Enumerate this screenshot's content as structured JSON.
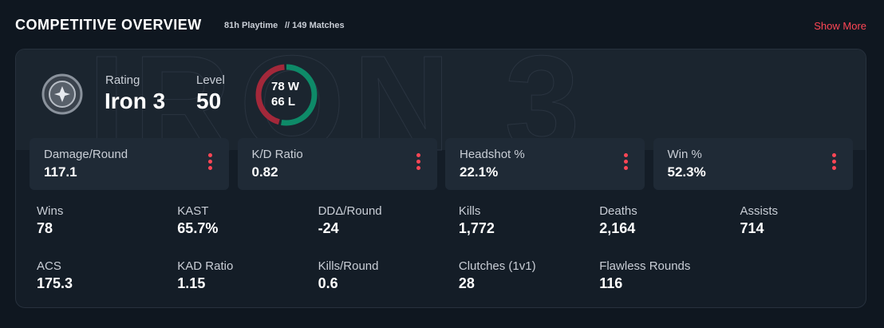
{
  "header": {
    "title": "COMPETITIVE OVERVIEW",
    "playtime": "81h Playtime",
    "matches": "// 149 Matches",
    "show_more": "Show More"
  },
  "profile": {
    "rating_label": "Rating",
    "rating": "Iron 3",
    "level_label": "Level",
    "level": "50",
    "record": {
      "wins": {
        "value": 78,
        "label": "W"
      },
      "losses": {
        "value": 66,
        "label": "L"
      }
    }
  },
  "highlights": [
    {
      "label": "Damage/Round",
      "value": "117.1"
    },
    {
      "label": "K/D Ratio",
      "value": "0.82"
    },
    {
      "label": "Headshot %",
      "value": "22.1%"
    },
    {
      "label": "Win %",
      "value": "52.3%"
    }
  ],
  "stats": [
    {
      "label": "Wins",
      "value": "78"
    },
    {
      "label": "KAST",
      "value": "65.7%"
    },
    {
      "label": "DDΔ/Round",
      "value": "-24"
    },
    {
      "label": "Kills",
      "value": "1,772"
    },
    {
      "label": "Deaths",
      "value": "2,164"
    },
    {
      "label": "Assists",
      "value": "714"
    },
    {
      "label": "ACS",
      "value": "175.3"
    },
    {
      "label": "KAD Ratio",
      "value": "1.15"
    },
    {
      "label": "Kills/Round",
      "value": "0.6"
    },
    {
      "label": "Clutches (1v1)",
      "value": "28"
    },
    {
      "label": "Flawless Rounds",
      "value": "116"
    }
  ]
}
